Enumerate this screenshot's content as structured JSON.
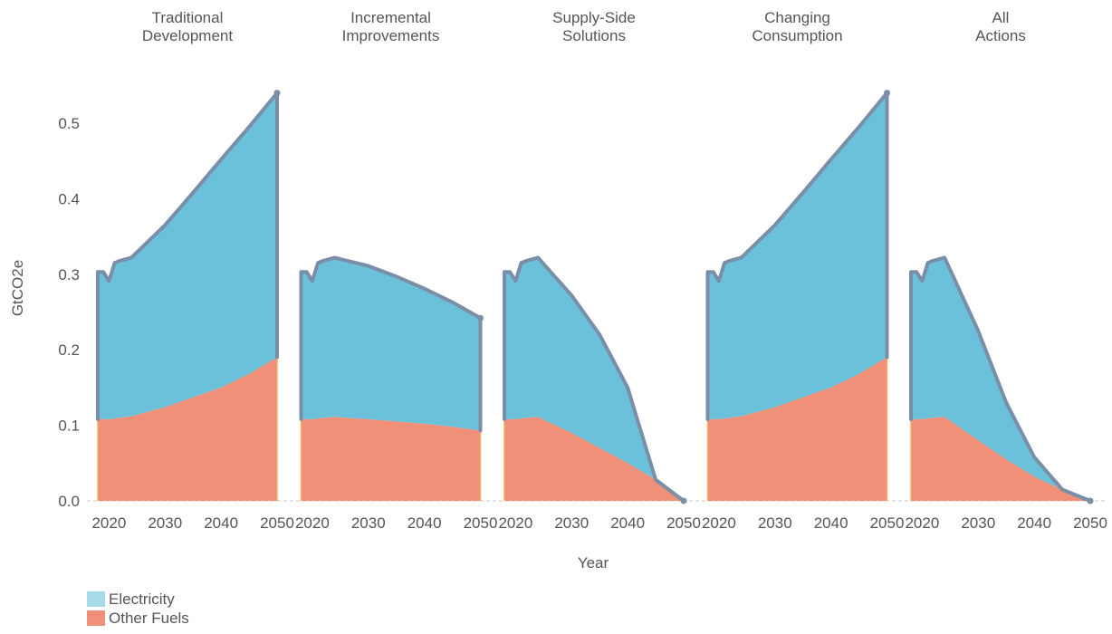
{
  "chart_data": {
    "type": "area",
    "ylabel": "GtCO2e",
    "xlabel": "Year",
    "ylim": [
      0,
      0.55
    ],
    "yticks": [
      "0.0",
      "0.1",
      "0.2",
      "0.3",
      "0.4",
      "0.5"
    ],
    "xticks": [
      "2020",
      "2030",
      "2040",
      "2050"
    ],
    "xlim": [
      2018,
      2050
    ],
    "legend_placement": "bottom-left",
    "grid": false,
    "colors": {
      "Electricity": "#6cc1da",
      "Other Fuels": "#f09078",
      "outline": "#7a8ea8"
    },
    "legend": [
      {
        "name": "Electricity",
        "color": "#a8dbe8"
      },
      {
        "name": "Other Fuels",
        "color": "#f09078"
      }
    ],
    "panels": [
      {
        "title_lines": [
          "Traditional",
          "Development"
        ],
        "x": [
          2018,
          2019,
          2020,
          2021,
          2022,
          2024,
          2030,
          2035,
          2040,
          2045,
          2050
        ],
        "other_fuels": [
          0.108,
          0.108,
          0.108,
          0.109,
          0.11,
          0.112,
          0.124,
          0.137,
          0.15,
          0.168,
          0.19
        ],
        "total": [
          0.303,
          0.303,
          0.291,
          0.315,
          0.318,
          0.322,
          0.365,
          0.408,
          0.452,
          0.495,
          0.54
        ]
      },
      {
        "title_lines": [
          "Incremental",
          "Improvements"
        ],
        "x": [
          2018,
          2019,
          2020,
          2021,
          2022,
          2024,
          2030,
          2035,
          2040,
          2045,
          2050
        ],
        "other_fuels": [
          0.108,
          0.108,
          0.108,
          0.109,
          0.11,
          0.111,
          0.108,
          0.105,
          0.102,
          0.098,
          0.093
        ],
        "total": [
          0.303,
          0.303,
          0.291,
          0.315,
          0.318,
          0.322,
          0.311,
          0.297,
          0.281,
          0.263,
          0.242
        ]
      },
      {
        "title_lines": [
          "Supply-Side",
          "Solutions"
        ],
        "x": [
          2018,
          2019,
          2020,
          2021,
          2022,
          2024,
          2030,
          2035,
          2040,
          2045,
          2050
        ],
        "other_fuels": [
          0.108,
          0.108,
          0.108,
          0.109,
          0.11,
          0.111,
          0.09,
          0.07,
          0.05,
          0.028,
          0.0
        ],
        "total": [
          0.303,
          0.303,
          0.291,
          0.315,
          0.318,
          0.322,
          0.272,
          0.22,
          0.15,
          0.028,
          0.0
        ]
      },
      {
        "title_lines": [
          "Changing",
          "Consumption"
        ],
        "x": [
          2018,
          2019,
          2020,
          2021,
          2022,
          2024,
          2030,
          2035,
          2040,
          2045,
          2050
        ],
        "other_fuels": [
          0.108,
          0.108,
          0.108,
          0.109,
          0.11,
          0.112,
          0.124,
          0.137,
          0.15,
          0.168,
          0.19
        ],
        "total": [
          0.303,
          0.303,
          0.291,
          0.315,
          0.318,
          0.322,
          0.365,
          0.408,
          0.452,
          0.495,
          0.54
        ]
      },
      {
        "title_lines": [
          "All",
          "Actions"
        ],
        "x": [
          2018,
          2019,
          2020,
          2021,
          2022,
          2024,
          2030,
          2035,
          2040,
          2045,
          2050
        ],
        "other_fuels": [
          0.108,
          0.108,
          0.108,
          0.109,
          0.11,
          0.111,
          0.08,
          0.055,
          0.032,
          0.015,
          0.0
        ],
        "total": [
          0.303,
          0.303,
          0.291,
          0.315,
          0.318,
          0.322,
          0.225,
          0.13,
          0.058,
          0.015,
          0.0
        ]
      }
    ]
  }
}
